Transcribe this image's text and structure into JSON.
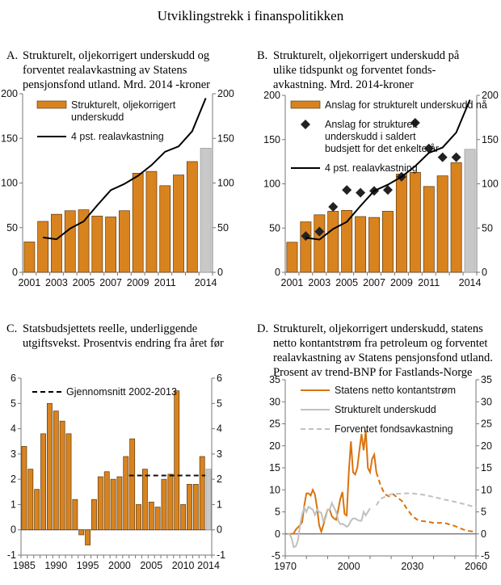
{
  "page_title": "Utviklingstrekk i finanspolitikken",
  "panels": [
    {
      "label": "A.",
      "title_lines": [
        "Strukturelt, oljekorrigert underskudd og",
        "forventet realavkastning av Statens",
        "pensjonsfond utland. Mrd. 2014 -kroner"
      ]
    },
    {
      "label": "B.",
      "title_lines": [
        "Strukturelt, oljekorrigert underskudd på",
        "ulike tidspunkt og forventet fonds-",
        "avkastning. Mrd. 2014-kroner"
      ]
    },
    {
      "label": "C.",
      "title_lines": [
        "Statsbudsjettets reelle, underliggende",
        "utgiftsvekst. Prosentvis endring fra året før"
      ]
    },
    {
      "label": "D.",
      "title_lines": [
        "Strukturelt, oljekorrigert underskudd, statens",
        "netto kontantstrøm fra petroleum og forventet",
        "realavkastning av Statens pensjonsfond utland.",
        "Prosent av trend-BNP for Fastlands-Norge"
      ]
    }
  ],
  "colors": {
    "bar": "#d9831f",
    "bar_edge": "#5a3a10",
    "highlight": "#c8c8c8",
    "line": "#000000",
    "orange_line": "#d9730d",
    "grey_line": "#c0c0c0"
  },
  "chart_data": [
    {
      "type": "bar",
      "categories": [
        "2001",
        "2002",
        "2003",
        "2004",
        "2005",
        "2006",
        "2007",
        "2008",
        "2009",
        "2010",
        "2011",
        "2012",
        "2013",
        "2014"
      ],
      "xtick_labels": {
        "2001": "2001",
        "2003": "2003",
        "2005": "2005",
        "2007": "2007",
        "2009": "2009",
        "2011": "2011",
        "2014": "2014"
      },
      "ylim": [
        0,
        200
      ],
      "yticks": [
        0,
        50,
        100,
        150,
        200
      ],
      "right_axis": true,
      "highlight_last": true,
      "series": [
        {
          "name": "Strukturelt, oljekorrigert underskudd",
          "legend_lines": [
            "Strukturelt, oljekorrigert",
            "underskudd"
          ],
          "kind": "bar",
          "values": [
            34,
            57,
            65,
            69,
            70,
            63,
            62,
            69,
            111,
            113,
            97,
            109,
            124,
            139
          ]
        },
        {
          "name": "4 pst. realavkastning",
          "legend_lines": [
            "4 pst. realavkastning"
          ],
          "kind": "line",
          "values": [
            null,
            39,
            37,
            49,
            57,
            75,
            92,
            99,
            108,
            120,
            135,
            141,
            158,
            195
          ]
        }
      ]
    },
    {
      "type": "bar",
      "categories": [
        "2001",
        "2002",
        "2003",
        "2004",
        "2005",
        "2006",
        "2007",
        "2008",
        "2009",
        "2010",
        "2011",
        "2012",
        "2013",
        "2014"
      ],
      "xtick_labels": {
        "2001": "2001",
        "2003": "2003",
        "2005": "2005",
        "2007": "2007",
        "2009": "2009",
        "2011": "2011",
        "2014": "2014"
      },
      "ylim": [
        0,
        200
      ],
      "yticks": [
        0,
        50,
        100,
        150,
        200
      ],
      "right_axis": true,
      "highlight_last": true,
      "series": [
        {
          "name": "Anslag for strukturelt underskudd nå",
          "legend_lines": [
            "Anslag for strukturelt underskudd nå"
          ],
          "kind": "bar",
          "values": [
            34,
            57,
            65,
            69,
            70,
            63,
            62,
            69,
            111,
            113,
            97,
            109,
            124,
            139
          ]
        },
        {
          "name": "Anslag for strukturelt underskudd i saldert budsjett for det enkelte år",
          "legend_lines": [
            "Anslag for strukturelt",
            "underskudd i saldert",
            "budsjett for det enkelte år"
          ],
          "kind": "marker",
          "values": [
            null,
            41,
            46,
            74,
            93,
            90,
            92,
            93,
            108,
            169,
            140,
            130,
            130,
            null
          ]
        },
        {
          "name": "4 pst. realavkastning",
          "legend_lines": [
            "4 pst. realavkastning"
          ],
          "kind": "line",
          "values": [
            null,
            39,
            37,
            49,
            57,
            75,
            92,
            99,
            108,
            120,
            135,
            141,
            158,
            195
          ]
        }
      ]
    },
    {
      "type": "bar",
      "categories": [
        "1985",
        "1986",
        "1987",
        "1988",
        "1989",
        "1990",
        "1991",
        "1992",
        "1993",
        "1994",
        "1995",
        "1996",
        "1997",
        "1998",
        "1999",
        "2000",
        "2001",
        "2002",
        "2003",
        "2004",
        "2005",
        "2006",
        "2007",
        "2008",
        "2009",
        "2010",
        "2011",
        "2012",
        "2013",
        "2014"
      ],
      "xtick_labels": {
        "1985": "1985",
        "1990": "1990",
        "1995": "1995",
        "2000": "2000",
        "2005": "2005",
        "2010": "2010",
        "2014": "2014"
      },
      "ylim": [
        -1,
        6
      ],
      "yticks": [
        -1,
        0,
        1,
        2,
        3,
        4,
        5,
        6
      ],
      "right_axis": true,
      "highlight_last": true,
      "series": [
        {
          "kind": "bar",
          "values": [
            3.3,
            2.4,
            1.6,
            3.8,
            5.0,
            4.7,
            4.3,
            3.8,
            1.2,
            -0.2,
            -0.6,
            1.2,
            2.1,
            2.3,
            2.0,
            2.1,
            2.9,
            3.6,
            1.0,
            2.4,
            1.1,
            0.9,
            2.0,
            2.2,
            5.5,
            1.0,
            1.8,
            1.8,
            2.9,
            2.4
          ]
        },
        {
          "name": "Gjennomsnitt 2002-2013",
          "legend_lines": [
            "Gjennomsnitt 2002-2013"
          ],
          "kind": "hline",
          "from": "2002",
          "to": "2013",
          "value": 2.15
        }
      ]
    },
    {
      "type": "line",
      "xlim": [
        1970,
        2060
      ],
      "xticks": [
        1970,
        1980,
        1990,
        2000,
        2010,
        2020,
        2030,
        2040,
        2050,
        2060
      ],
      "xtick_labels": [
        "1970",
        "2000",
        "2030",
        "2060"
      ],
      "ylim": [
        -5,
        35
      ],
      "yticks": [
        -5,
        0,
        5,
        10,
        15,
        20,
        25,
        30,
        35
      ],
      "right_axis": true,
      "series": [
        {
          "name": "Statens netto kontantstrøm",
          "style": "solid-orange",
          "x": [
            1971,
            1972,
            1973,
            1974,
            1975,
            1976,
            1977,
            1978,
            1979,
            1980,
            1981,
            1982,
            1983,
            1984,
            1985,
            1986,
            1987,
            1988,
            1989,
            1990,
            1991,
            1992,
            1993,
            1994,
            1995,
            1996,
            1997,
            1998,
            1999,
            2000,
            2001,
            2002,
            2003,
            2004,
            2005,
            2006,
            2007,
            2008,
            2009,
            2010,
            2011,
            2012,
            2013
          ],
          "y": [
            0,
            0,
            0,
            0.1,
            1,
            1.5,
            2,
            2.7,
            6.5,
            9.2,
            9.2,
            8.7,
            10,
            9,
            6,
            2,
            0.5,
            2,
            4,
            5.5,
            5.5,
            4,
            3.5,
            3.2,
            5.5,
            8,
            9.5,
            4.5,
            4.2,
            14,
            21,
            14,
            13.5,
            15,
            19,
            22.7,
            19,
            23.5,
            15,
            14,
            17,
            18,
            14
          ]
        },
        {
          "name": "Statens netto kontantstrøm (projeksjon)",
          "style": "dashed-orange",
          "legend": false,
          "x": [
            2013,
            2015,
            2017,
            2019,
            2021,
            2023,
            2025,
            2027,
            2030,
            2033,
            2037,
            2040,
            2045,
            2050,
            2055,
            2060
          ],
          "y": [
            14,
            11,
            9,
            8.5,
            9,
            8.2,
            7.5,
            6,
            4,
            3,
            2.8,
            2.5,
            2.5,
            1.8,
            0.8,
            0.4
          ]
        },
        {
          "name": "Strukturelt underskudd",
          "style": "solid-grey",
          "x": [
            1971,
            1972,
            1973,
            1974,
            1975,
            1976,
            1977,
            1978,
            1979,
            1980,
            1981,
            1982,
            1983,
            1984,
            1985,
            1986,
            1987,
            1988,
            1989,
            1990,
            1991,
            1992,
            1993,
            1994,
            1995,
            1996,
            1997,
            1998,
            1999,
            2000,
            2001,
            2002,
            2003,
            2004,
            2005,
            2006,
            2007,
            2008,
            2009,
            2010,
            2011,
            2012,
            2013,
            2014
          ],
          "y": [
            0,
            0,
            -1,
            -3,
            -2.8,
            -1.5,
            2,
            4.5,
            6,
            5,
            6.2,
            5.8,
            5.5,
            4.3,
            5.5,
            5,
            4.8,
            2.8,
            3.5,
            5.5,
            5.5,
            7,
            6,
            5,
            3,
            2.2,
            2.3,
            2,
            1.6,
            2,
            3,
            3.5,
            3.5,
            3.2,
            3,
            3,
            5,
            4.2,
            5,
            5.8,
            null,
            null,
            null,
            null
          ]
        },
        {
          "name": "Forventet fondsavkastning",
          "style": "dashed-grey",
          "x": [
            2013,
            2015,
            2020,
            2025,
            2030,
            2035,
            2040,
            2045,
            2050,
            2055,
            2060
          ],
          "y": [
            6.5,
            8,
            9,
            9.2,
            9.2,
            8.9,
            8.4,
            7.8,
            7.3,
            6.7,
            6
          ]
        }
      ]
    }
  ]
}
